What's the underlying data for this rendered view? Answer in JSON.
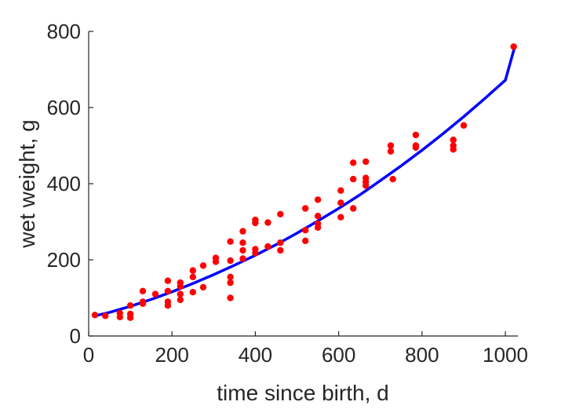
{
  "chart_data": {
    "type": "scatter",
    "title": "",
    "xlabel": "time since birth, d",
    "ylabel": "wet weight, g",
    "xlim": [
      0,
      1030
    ],
    "ylim": [
      0,
      800
    ],
    "xticks": [
      0,
      200,
      400,
      600,
      800,
      1000
    ],
    "yticks": [
      0,
      200,
      400,
      600,
      800
    ],
    "x_tick_labels": [
      "0",
      "200",
      "400",
      "600",
      "800",
      "1000"
    ],
    "y_tick_labels": [
      "0",
      "200",
      "400",
      "600",
      "800"
    ],
    "grid": false,
    "legend": "none",
    "colors": {
      "points": "#ff0000",
      "fit": "#0000ff",
      "axes": "#262626"
    },
    "series": [
      {
        "kind": "points",
        "x": [
          15,
          40,
          75,
          75,
          100,
          100,
          100,
          130,
          130,
          130,
          160,
          190,
          190,
          190,
          190,
          220,
          220,
          220,
          220,
          250,
          250,
          250,
          275,
          275,
          305,
          305,
          340,
          340,
          340,
          340,
          340,
          370,
          370,
          370,
          370,
          400,
          400,
          400,
          400,
          430,
          430,
          460,
          460,
          460,
          520,
          520,
          520,
          550,
          550,
          550,
          550,
          605,
          605,
          605,
          635,
          635,
          635,
          665,
          665,
          665,
          665,
          725,
          725,
          730,
          785,
          785,
          785,
          875,
          875,
          875,
          900,
          1020
        ],
        "y": [
          55,
          53,
          60,
          50,
          80,
          58,
          48,
          118,
          90,
          85,
          110,
          145,
          118,
          90,
          80,
          140,
          130,
          110,
          95,
          172,
          155,
          115,
          185,
          128,
          205,
          195,
          248,
          198,
          155,
          140,
          100,
          275,
          245,
          225,
          203,
          305,
          297,
          228,
          218,
          298,
          235,
          320,
          245,
          225,
          335,
          278,
          250,
          358,
          315,
          295,
          285,
          382,
          350,
          312,
          455,
          412,
          335,
          458,
          415,
          405,
          395,
          500,
          485,
          412,
          528,
          500,
          495,
          515,
          500,
          490,
          553,
          760
        ]
      },
      {
        "kind": "fit",
        "x": [
          15,
          50,
          100,
          150,
          200,
          250,
          300,
          350,
          400,
          450,
          500,
          550,
          600,
          650,
          700,
          750,
          800,
          850,
          900,
          950,
          1000,
          1022
        ],
        "y": [
          53,
          62,
          78,
          96,
          116,
          138,
          161,
          186,
          212,
          240,
          270,
          302,
          335,
          370,
          408,
          447,
          488,
          531,
          576,
          623,
          672,
          758
        ]
      }
    ]
  }
}
